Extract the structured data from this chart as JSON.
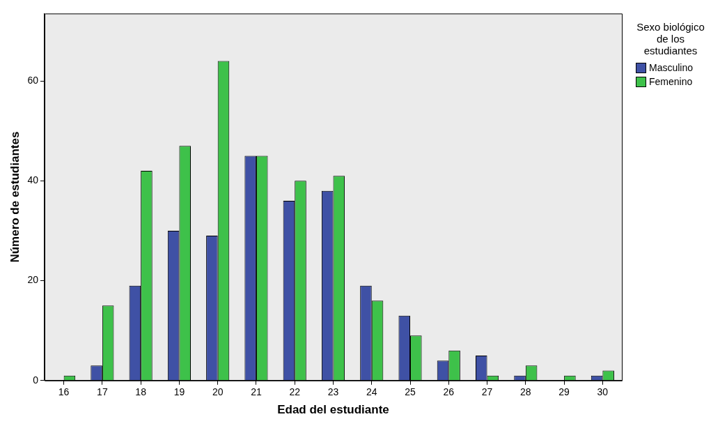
{
  "chart_data": {
    "type": "bar",
    "xlabel": "Edad del estudiante",
    "ylabel": "Número de estudiantes",
    "legend_title": "Sexo biológico de los estudiantes",
    "categories": [
      "16",
      "17",
      "18",
      "19",
      "20",
      "21",
      "22",
      "23",
      "24",
      "25",
      "26",
      "27",
      "28",
      "29",
      "30"
    ],
    "series": [
      {
        "name": "Masculino",
        "color": "#3f51a5",
        "values": [
          0,
          3,
          19,
          30,
          29,
          45,
          36,
          38,
          19,
          13,
          4,
          5,
          1,
          0,
          1
        ]
      },
      {
        "name": "Femenino",
        "color": "#3ec14a",
        "values": [
          1,
          15,
          42,
          47,
          64,
          45,
          40,
          41,
          16,
          9,
          6,
          1,
          3,
          1,
          2
        ]
      }
    ],
    "ylim": [
      0,
      73.5
    ],
    "yticks": [
      0,
      20,
      40,
      60
    ],
    "grid": false,
    "legend": "top right"
  }
}
